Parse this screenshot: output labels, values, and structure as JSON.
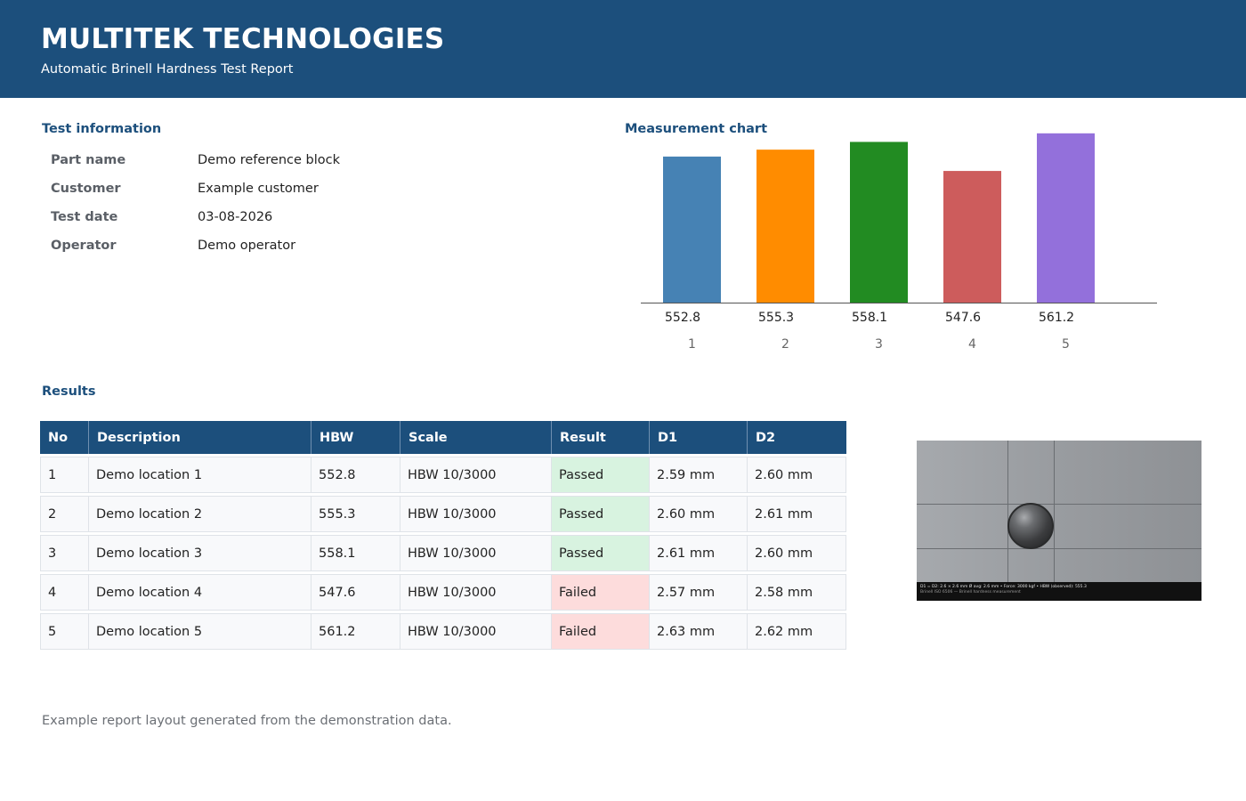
{
  "header": {
    "title": "MULTITEK TECHNOLOGIES",
    "subtitle": "Automatic Brinell Hardness Test Report"
  },
  "test_info": {
    "section_title": "Test information",
    "rows": [
      {
        "label": "Part name",
        "value": "Demo reference block"
      },
      {
        "label": "Customer",
        "value": "Example customer"
      },
      {
        "label": "Test date",
        "value": "03-08-2026"
      },
      {
        "label": "Operator",
        "value": "Demo operator"
      }
    ]
  },
  "chart_section_title": "Measurement chart",
  "chart_data": {
    "type": "bar",
    "categories": [
      "1",
      "2",
      "3",
      "4",
      "5"
    ],
    "values": [
      552.8,
      555.3,
      558.1,
      547.6,
      561.2
    ],
    "value_labels": [
      "552.8",
      "555.3",
      "558.1",
      "547.6",
      "561.2"
    ],
    "colors": [
      "#4682b4",
      "#ff8c00",
      "#228b22",
      "#cd5c5c",
      "#9370db"
    ],
    "title": "",
    "xlabel": "",
    "ylabel": "",
    "ylim": [
      500,
      565
    ],
    "grid": false,
    "legend": "none"
  },
  "results": {
    "section_title": "Results",
    "columns": [
      "No",
      "Description",
      "HBW",
      "Scale",
      "Result",
      "D1",
      "D2"
    ],
    "rows": [
      {
        "no": "1",
        "description": "Demo location 1",
        "hbw": "552.8",
        "scale": "HBW 10/3000",
        "result": "Passed",
        "status": "pass",
        "d1": "2.59 mm",
        "d2": "2.60 mm"
      },
      {
        "no": "2",
        "description": "Demo location 2",
        "hbw": "555.3",
        "scale": "HBW 10/3000",
        "result": "Passed",
        "status": "pass",
        "d1": "2.60 mm",
        "d2": "2.61 mm"
      },
      {
        "no": "3",
        "description": "Demo location 3",
        "hbw": "558.1",
        "scale": "HBW 10/3000",
        "result": "Passed",
        "status": "pass",
        "d1": "2.61 mm",
        "d2": "2.60 mm"
      },
      {
        "no": "4",
        "description": "Demo location 4",
        "hbw": "547.6",
        "scale": "HBW 10/3000",
        "result": "Failed",
        "status": "fail",
        "d1": "2.57 mm",
        "d2": "2.58 mm"
      },
      {
        "no": "5",
        "description": "Demo location 5",
        "hbw": "561.2",
        "scale": "HBW 10/3000",
        "result": "Failed",
        "status": "fail",
        "d1": "2.63 mm",
        "d2": "2.62 mm"
      }
    ]
  },
  "measurement_image": {
    "icon": "indentation-micrograph",
    "caption_line1": "D1 = D2: 2.6 × 2.6 mm   Ø avg: 2.6 mm   •   Force: 3000 kgf   •   HBW (observed): 555.3",
    "caption_line2": "Brinell ISO 6506 — Brinell hardness measurement"
  },
  "footer": {
    "note": "Example report layout generated from the demonstration data."
  }
}
